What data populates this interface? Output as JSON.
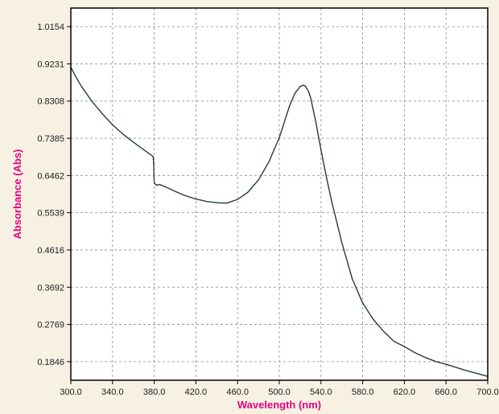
{
  "colors": {
    "background": "#f7f1e3",
    "plot_area": "#ffffff",
    "axis": "#000000",
    "grid": "#8c8c8c",
    "series": "#24402a",
    "axis_title": "#e6007e"
  },
  "chart_data": {
    "type": "line",
    "title": "",
    "xlabel": "Wavelength (nm)",
    "ylabel": "Absorbance (Abs)",
    "xlim": [
      300.0,
      700.0
    ],
    "ylim": [
      0.1385,
      1.0615
    ],
    "x_ticks": [
      300.0,
      340.0,
      380.0,
      420.0,
      460.0,
      500.0,
      540.0,
      580.0,
      620.0,
      660.0,
      700.0
    ],
    "x_tick_labels": [
      "300.0",
      "340.0",
      "380.0",
      "420.0",
      "460.0",
      "500.0",
      "540.0",
      "580.0",
      "620.0",
      "660.0",
      "700.0"
    ],
    "y_ticks": [
      0.1846,
      0.2769,
      0.3692,
      0.4616,
      0.5539,
      0.6462,
      0.7385,
      0.8308,
      0.9231,
      1.0154
    ],
    "y_tick_labels": [
      "0.1846",
      "0.2769",
      "0.3692",
      "0.4616",
      "0.5539",
      "0.6462",
      "0.7385",
      "0.8308",
      "0.9231",
      "1.0154"
    ],
    "grid": true,
    "legend": "none",
    "series": [
      {
        "x": [
          300,
          305,
          310,
          320,
          330,
          340,
          350,
          360,
          370,
          378,
          379,
          379.5,
          380,
          382,
          385,
          390,
          400,
          410,
          420,
          430,
          440,
          445,
          450,
          460,
          470,
          480,
          490,
          500,
          505,
          510,
          515,
          520,
          523,
          525,
          528,
          530,
          535,
          540,
          545,
          550,
          560,
          570,
          580,
          590,
          600,
          610,
          620,
          630,
          640,
          650,
          660,
          670,
          680,
          690,
          700
        ],
        "y": [
          0.915,
          0.89,
          0.868,
          0.831,
          0.8,
          0.772,
          0.749,
          0.729,
          0.71,
          0.695,
          0.693,
          0.675,
          0.628,
          0.622,
          0.624,
          0.619,
          0.607,
          0.596,
          0.588,
          0.582,
          0.579,
          0.578,
          0.578,
          0.587,
          0.605,
          0.635,
          0.68,
          0.74,
          0.78,
          0.82,
          0.85,
          0.867,
          0.87,
          0.868,
          0.855,
          0.84,
          0.78,
          0.71,
          0.645,
          0.585,
          0.48,
          0.39,
          0.33,
          0.29,
          0.26,
          0.235,
          0.222,
          0.207,
          0.195,
          0.185,
          0.178,
          0.17,
          0.162,
          0.155,
          0.148
        ]
      }
    ]
  }
}
